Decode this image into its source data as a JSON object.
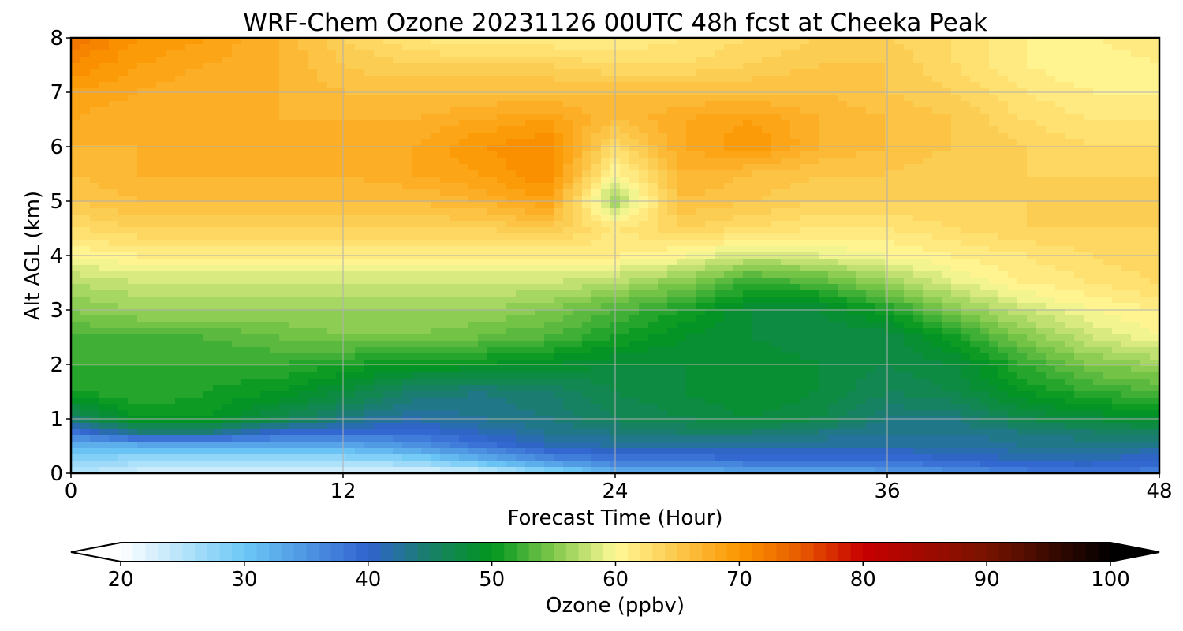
{
  "chart_data": {
    "type": "heatmap",
    "title": "WRF-Chem Ozone  20231126 00UTC 48h fcst at Cheeka Peak",
    "xlabel": "Forecast Time (Hour)",
    "ylabel": "Alt AGL (km)",
    "xlim": [
      0,
      48
    ],
    "ylim": [
      0,
      8
    ],
    "xticks": [
      0,
      12,
      24,
      36,
      48
    ],
    "yticks": [
      0,
      1,
      2,
      3,
      4,
      5,
      6,
      7,
      8
    ],
    "grid": true,
    "x": [
      0,
      3,
      6,
      9,
      12,
      15,
      18,
      21,
      24,
      27,
      30,
      33,
      36,
      39,
      42,
      45,
      48
    ],
    "y": [
      0,
      0.25,
      0.5,
      0.75,
      1,
      1.5,
      2,
      2.5,
      3,
      3.5,
      4,
      4.5,
      5,
      5.5,
      6,
      6.5,
      7,
      7.5,
      8
    ],
    "z": [
      [
        25,
        23,
        23,
        23,
        22,
        22,
        23,
        27,
        32,
        32,
        33,
        33,
        34,
        35,
        37,
        38,
        37
      ],
      [
        28,
        27,
        27,
        27,
        27,
        28,
        32,
        36,
        38,
        38,
        39,
        39,
        39,
        40,
        41,
        41,
        40
      ],
      [
        32,
        32,
        32,
        33,
        33,
        35,
        38,
        41,
        42,
        42,
        42,
        42,
        42,
        42,
        43,
        43,
        43
      ],
      [
        38,
        44,
        44,
        40,
        39,
        39,
        41,
        43,
        44,
        45,
        45,
        44,
        43,
        43,
        44,
        45,
        46
      ],
      [
        45,
        50,
        50,
        47,
        44,
        42,
        43,
        44,
        46,
        47,
        48,
        47,
        44,
        44,
        47,
        48,
        49
      ],
      [
        51,
        52,
        51,
        50,
        48,
        45,
        44,
        45,
        47,
        48,
        49,
        48,
        46,
        47,
        50,
        52,
        53
      ],
      [
        52,
        52,
        52,
        52,
        51,
        50,
        50,
        49,
        48,
        48,
        49,
        48,
        47,
        48,
        52,
        55,
        56
      ],
      [
        53,
        53,
        53,
        54,
        55,
        55,
        54,
        53,
        51,
        49,
        48,
        47,
        47,
        51,
        55,
        58,
        60
      ],
      [
        55,
        56,
        56,
        56,
        56,
        56,
        56,
        55,
        53,
        51,
        48,
        48,
        51,
        55,
        58,
        60,
        61
      ],
      [
        57,
        58,
        58,
        58,
        58,
        58,
        58,
        58,
        57,
        55,
        52,
        53,
        56,
        59,
        61,
        62,
        63
      ],
      [
        60,
        61,
        61,
        61,
        61,
        61,
        61,
        61,
        61,
        60,
        58,
        59,
        60,
        61,
        62,
        63,
        64
      ],
      [
        63,
        64,
        64,
        64,
        64,
        64,
        64,
        65,
        62,
        64,
        63,
        62,
        62,
        63,
        64,
        64,
        64
      ],
      [
        65,
        66,
        66,
        66,
        66,
        66,
        67,
        69,
        56,
        66,
        65,
        64,
        64,
        64,
        64,
        64,
        64
      ],
      [
        66,
        67,
        67,
        67,
        67,
        68,
        69,
        71,
        60,
        67,
        66,
        65,
        65,
        64,
        64,
        64,
        64
      ],
      [
        67,
        67,
        67,
        67,
        67,
        68,
        70,
        71,
        63,
        68,
        70,
        67,
        66,
        65,
        64,
        63,
        63
      ],
      [
        68,
        67,
        67,
        67,
        67,
        67,
        68,
        69,
        66,
        68,
        69,
        67,
        66,
        65,
        63,
        62,
        62
      ],
      [
        69,
        68,
        67,
        67,
        66,
        66,
        66,
        66,
        66,
        66,
        66,
        66,
        65,
        64,
        62,
        61,
        61
      ],
      [
        71,
        69,
        68,
        67,
        65,
        64,
        64,
        64,
        63,
        63,
        64,
        65,
        65,
        63,
        61,
        60,
        61
      ],
      [
        73,
        70,
        69,
        67,
        64,
        62,
        61,
        61,
        61,
        62,
        63,
        64,
        64,
        63,
        61,
        61,
        62
      ]
    ],
    "colorbar": {
      "label": "Ozone  (ppbv)",
      "vmin": 20,
      "vmax": 100,
      "ticks": [
        20,
        30,
        40,
        50,
        60,
        70,
        80,
        90,
        100
      ],
      "extend": "both",
      "colors": [
        [
          20,
          "#ffffff"
        ],
        [
          30,
          "#6cc8f6"
        ],
        [
          40,
          "#3163cf"
        ],
        [
          45,
          "#198068"
        ],
        [
          50,
          "#00961e"
        ],
        [
          55,
          "#80c84c"
        ],
        [
          60,
          "#fff996"
        ],
        [
          65,
          "#fcc84c"
        ],
        [
          70,
          "#fc9600"
        ],
        [
          75,
          "#e75a00"
        ],
        [
          80,
          "#c80000"
        ],
        [
          90,
          "#781400"
        ],
        [
          100,
          "#000000"
        ]
      ]
    }
  }
}
